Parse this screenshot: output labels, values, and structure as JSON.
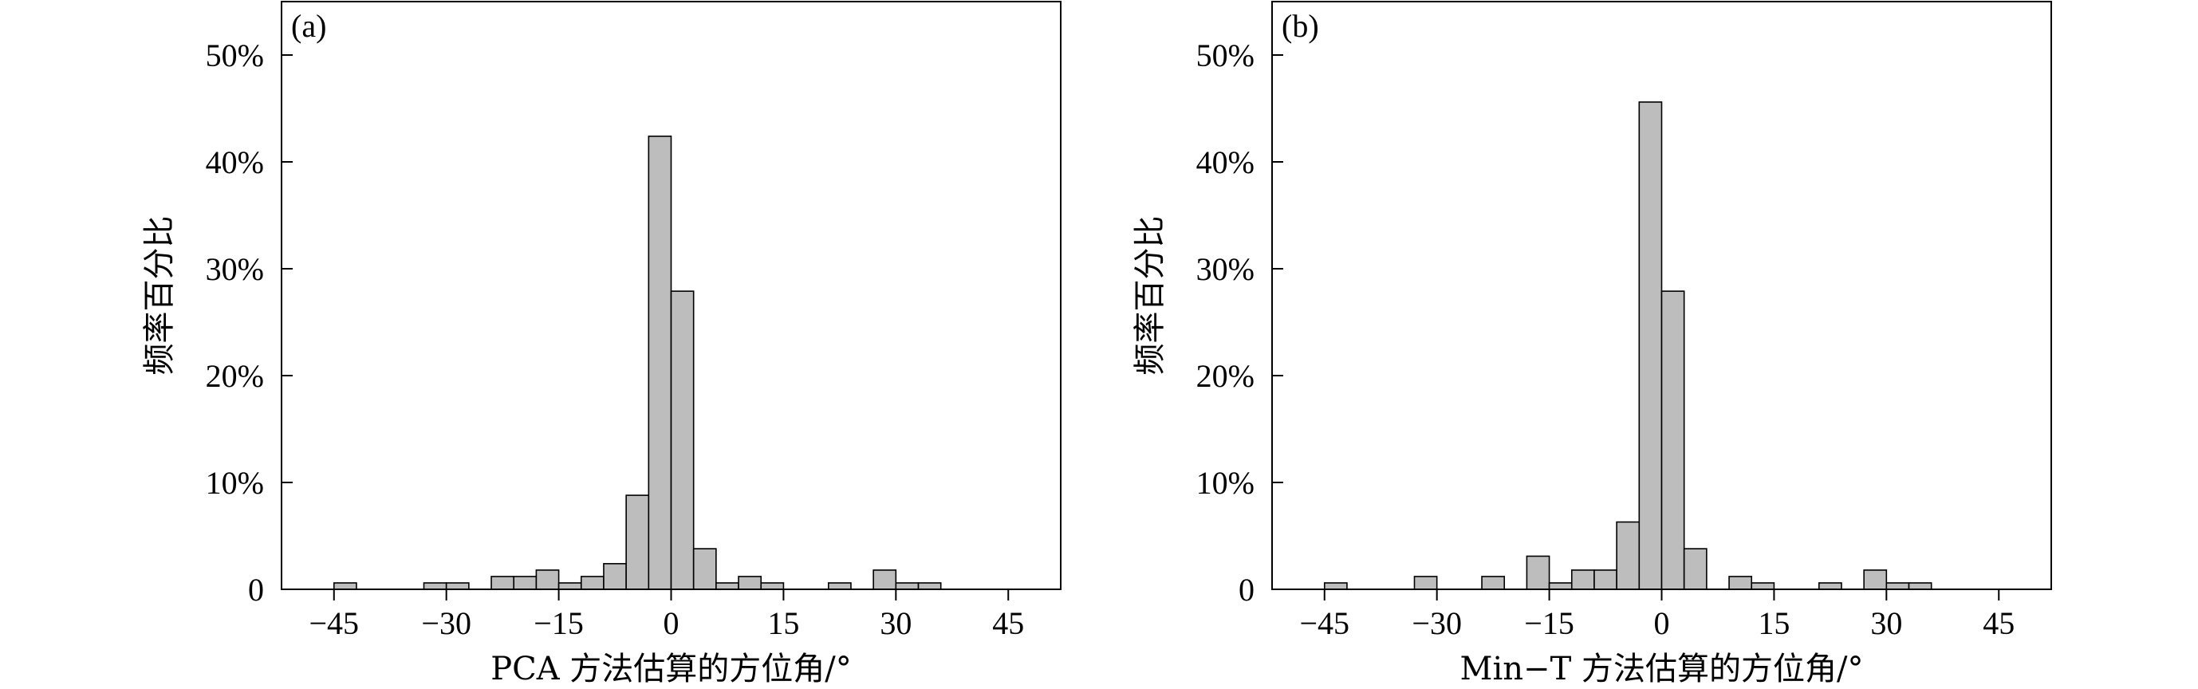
{
  "chart_data": [
    {
      "type": "bar",
      "panel_label": "(a)",
      "xlabel": "PCA 方法估算的方位角/°",
      "ylabel": "频率百分比",
      "xlim": [
        -52,
        52
      ],
      "ylim": [
        0,
        55
      ],
      "xticks": [
        -45,
        -30,
        -15,
        0,
        15,
        30,
        45
      ],
      "xtick_labels": [
        "−45",
        "−30",
        "−15",
        "0",
        "15",
        "30",
        "45"
      ],
      "yticks": [
        0,
        10,
        20,
        30,
        40,
        50
      ],
      "ytick_labels": [
        "0",
        "10%",
        "20%",
        "30%",
        "40%",
        "50%"
      ],
      "bin_width": 3,
      "bins": [
        {
          "x": -45,
          "value": 0.6
        },
        {
          "x": -33,
          "value": 0.6
        },
        {
          "x": -30,
          "value": 0.6
        },
        {
          "x": -24,
          "value": 1.2
        },
        {
          "x": -21,
          "value": 1.2
        },
        {
          "x": -18,
          "value": 1.8
        },
        {
          "x": -15,
          "value": 0.6
        },
        {
          "x": -12,
          "value": 1.2
        },
        {
          "x": -9,
          "value": 2.4
        },
        {
          "x": -6,
          "value": 8.8
        },
        {
          "x": -3,
          "value": 42.4
        },
        {
          "x": 0,
          "value": 27.9
        },
        {
          "x": 3,
          "value": 3.8
        },
        {
          "x": 6,
          "value": 0.6
        },
        {
          "x": 9,
          "value": 1.2
        },
        {
          "x": 12,
          "value": 0.6
        },
        {
          "x": 21,
          "value": 0.6
        },
        {
          "x": 27,
          "value": 1.8
        },
        {
          "x": 30,
          "value": 0.6
        },
        {
          "x": 33,
          "value": 0.6
        }
      ]
    },
    {
      "type": "bar",
      "panel_label": "(b)",
      "xlabel": "Min−T 方法估算的方位角/°",
      "ylabel": "频率百分比",
      "xlim": [
        -52,
        52
      ],
      "ylim": [
        0,
        55
      ],
      "xticks": [
        -45,
        -30,
        -15,
        0,
        15,
        30,
        45
      ],
      "xtick_labels": [
        "−45",
        "−30",
        "−15",
        "0",
        "15",
        "30",
        "45"
      ],
      "yticks": [
        0,
        10,
        20,
        30,
        40,
        50
      ],
      "ytick_labels": [
        "0",
        "10%",
        "20%",
        "30%",
        "40%",
        "50%"
      ],
      "bin_width": 3,
      "bins": [
        {
          "x": -45,
          "value": 0.6
        },
        {
          "x": -33,
          "value": 1.2
        },
        {
          "x": -24,
          "value": 1.2
        },
        {
          "x": -18,
          "value": 3.1
        },
        {
          "x": -15,
          "value": 0.6
        },
        {
          "x": -12,
          "value": 1.8
        },
        {
          "x": -9,
          "value": 1.8
        },
        {
          "x": -6,
          "value": 6.3
        },
        {
          "x": -3,
          "value": 45.6
        },
        {
          "x": 0,
          "value": 27.9
        },
        {
          "x": 3,
          "value": 3.8
        },
        {
          "x": 9,
          "value": 1.2
        },
        {
          "x": 12,
          "value": 0.6
        },
        {
          "x": 21,
          "value": 0.6
        },
        {
          "x": 27,
          "value": 1.8
        },
        {
          "x": 30,
          "value": 0.6
        },
        {
          "x": 33,
          "value": 0.6
        }
      ]
    }
  ]
}
